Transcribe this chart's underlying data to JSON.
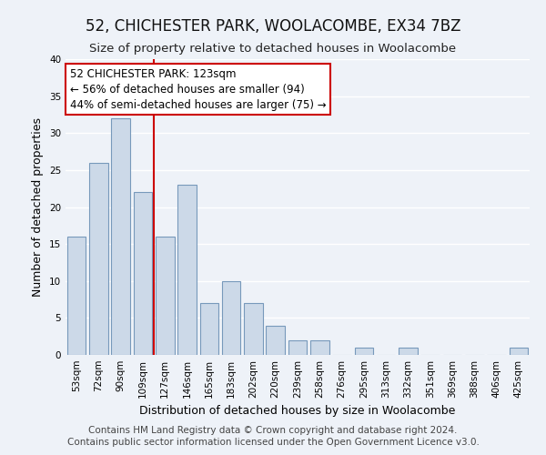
{
  "title": "52, CHICHESTER PARK, WOOLACOMBE, EX34 7BZ",
  "subtitle": "Size of property relative to detached houses in Woolacombe",
  "xlabel": "Distribution of detached houses by size in Woolacombe",
  "ylabel": "Number of detached properties",
  "bin_labels": [
    "53sqm",
    "72sqm",
    "90sqm",
    "109sqm",
    "127sqm",
    "146sqm",
    "165sqm",
    "183sqm",
    "202sqm",
    "220sqm",
    "239sqm",
    "258sqm",
    "276sqm",
    "295sqm",
    "313sqm",
    "332sqm",
    "351sqm",
    "369sqm",
    "388sqm",
    "406sqm",
    "425sqm"
  ],
  "bar_values": [
    16,
    26,
    32,
    22,
    16,
    23,
    7,
    10,
    7,
    4,
    2,
    2,
    0,
    1,
    0,
    1,
    0,
    0,
    0,
    0,
    1
  ],
  "bar_color": "#ccd9e8",
  "bar_edge_color": "#7799bb",
  "vline_x_index": 4,
  "vline_color": "#cc0000",
  "annotation_title": "52 CHICHESTER PARK: 123sqm",
  "annotation_line1": "← 56% of detached houses are smaller (94)",
  "annotation_line2": "44% of semi-detached houses are larger (75) →",
  "annotation_box_facecolor": "#ffffff",
  "annotation_box_edgecolor": "#cc0000",
  "ylim": [
    0,
    40
  ],
  "yticks": [
    0,
    5,
    10,
    15,
    20,
    25,
    30,
    35,
    40
  ],
  "footer1": "Contains HM Land Registry data © Crown copyright and database right 2024.",
  "footer2": "Contains public sector information licensed under the Open Government Licence v3.0.",
  "background_color": "#eef2f8",
  "plot_bg_color": "#eef2f8",
  "grid_color": "#ffffff",
  "title_fontsize": 12,
  "subtitle_fontsize": 9.5,
  "axis_label_fontsize": 9,
  "tick_fontsize": 7.5,
  "footer_fontsize": 7.5,
  "ann_fontsize": 8.5
}
